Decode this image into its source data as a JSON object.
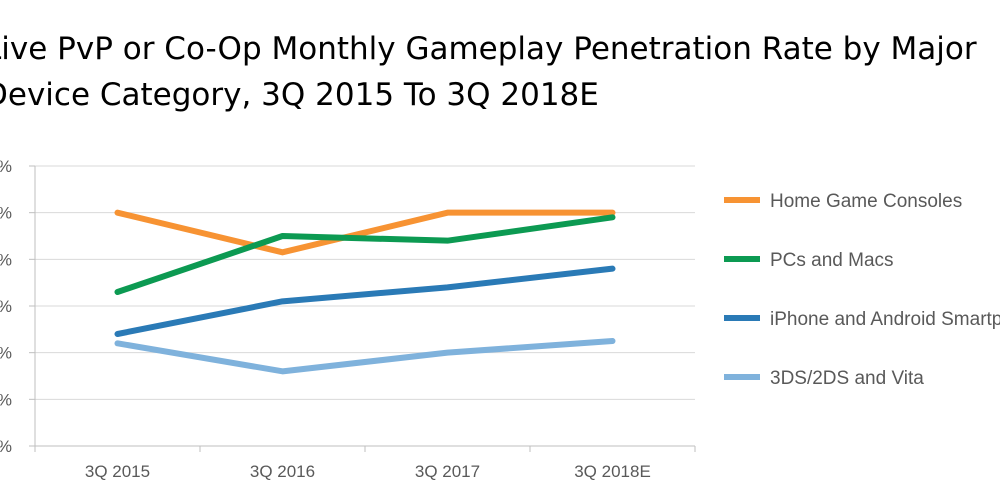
{
  "chart_data": {
    "type": "line",
    "title": "Live PvP or Co-Op Monthly Gameplay Penetration Rate by Major Device Category, 3Q 2015 To 3Q 2018E",
    "categories": [
      "3Q 2015",
      "3Q 2016",
      "3Q 2017",
      "3Q 2018E"
    ],
    "y_tick_labels": [
      "%",
      "%",
      "%",
      "%",
      "%",
      "%",
      "%"
    ],
    "ylim": [
      0,
      6
    ],
    "grid": true,
    "legend_position": "right",
    "series": [
      {
        "name": "Home Game Consoles",
        "color": "#F79333",
        "values": [
          5.0,
          4.15,
          5.0,
          5.0
        ]
      },
      {
        "name": "PCs and Macs",
        "color": "#0C9A52",
        "values": [
          3.3,
          4.5,
          4.4,
          4.9
        ]
      },
      {
        "name": "iPhone and Android Smartphones",
        "color": "#2A7AB6",
        "values": [
          2.4,
          3.1,
          3.4,
          3.8
        ]
      },
      {
        "name": "3DS/2DS and Vita",
        "color": "#7FB2DC",
        "values": [
          2.2,
          1.6,
          2.0,
          2.25
        ]
      }
    ]
  }
}
